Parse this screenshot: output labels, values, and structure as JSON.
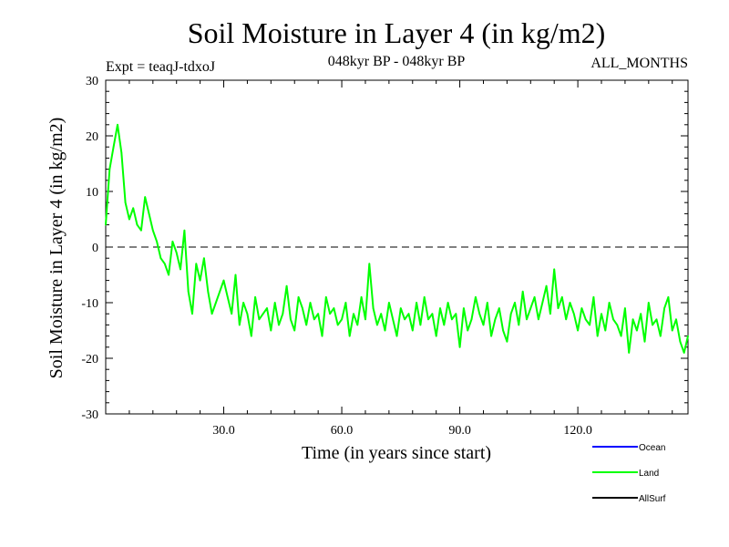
{
  "chart_data": {
    "type": "line",
    "title": "Soil Moisture in Layer 4 (in kg/m2)",
    "subtitle_left": "Expt = teaqJ-tdxoJ",
    "subtitle_center": "048kyr BP - 048kyr BP",
    "subtitle_right": "ALL_MONTHS",
    "xlabel": "Time (in years since start)",
    "ylabel": "Soil Moisture in Layer 4 (in kg/m2)",
    "xlim": [
      0,
      148
    ],
    "ylim": [
      -30,
      30
    ],
    "x_ticks": [
      30,
      60,
      90,
      120
    ],
    "x_tick_labels": [
      "30.0",
      "60.0",
      "90.0",
      "120.0"
    ],
    "y_ticks": [
      -30,
      -20,
      -10,
      0,
      10,
      20,
      30
    ],
    "y_tick_labels": [
      "-30",
      "-20",
      "-10",
      "0",
      "10",
      "20",
      "30"
    ],
    "reference_line": {
      "y": 0,
      "style": "dashed"
    },
    "legend_position": "bottom-right",
    "legend": [
      {
        "name": "Ocean",
        "color": "#0000ff"
      },
      {
        "name": "Land",
        "color": "#00ff00"
      },
      {
        "name": "AllSurf",
        "color": "#000000"
      }
    ],
    "series": [
      {
        "name": "Land",
        "color": "#00ff00",
        "x": [
          0,
          1,
          2,
          3,
          4,
          5,
          6,
          7,
          8,
          9,
          10,
          11,
          12,
          13,
          14,
          15,
          16,
          17,
          18,
          19,
          20,
          21,
          22,
          23,
          24,
          25,
          26,
          27,
          28,
          29,
          30,
          31,
          32,
          33,
          34,
          35,
          36,
          37,
          38,
          39,
          40,
          41,
          42,
          43,
          44,
          45,
          46,
          47,
          48,
          49,
          50,
          51,
          52,
          53,
          54,
          55,
          56,
          57,
          58,
          59,
          60,
          61,
          62,
          63,
          64,
          65,
          66,
          67,
          68,
          69,
          70,
          71,
          72,
          73,
          74,
          75,
          76,
          77,
          78,
          79,
          80,
          81,
          82,
          83,
          84,
          85,
          86,
          87,
          88,
          89,
          90,
          91,
          92,
          93,
          94,
          95,
          96,
          97,
          98,
          99,
          100,
          101,
          102,
          103,
          104,
          105,
          106,
          107,
          108,
          109,
          110,
          111,
          112,
          113,
          114,
          115,
          116,
          117,
          118,
          119,
          120,
          121,
          122,
          123,
          124,
          125,
          126,
          127,
          128,
          129,
          130,
          131,
          132,
          133,
          134,
          135,
          136,
          137,
          138,
          139,
          140,
          141,
          142,
          143,
          144,
          145,
          146,
          147,
          148
        ],
        "values": [
          4,
          14,
          18,
          22,
          17,
          8,
          5,
          7,
          4,
          3,
          9,
          6,
          3,
          1,
          -2,
          -3,
          -5,
          1,
          -1,
          -4,
          3,
          -8,
          -12,
          -3,
          -6,
          -2,
          -8,
          -12,
          -10,
          -8,
          -6,
          -9,
          -12,
          -5,
          -14,
          -10,
          -12,
          -16,
          -9,
          -13,
          -12,
          -11,
          -15,
          -10,
          -14,
          -12,
          -7,
          -13,
          -15,
          -9,
          -11,
          -14,
          -10,
          -13,
          -12,
          -16,
          -9,
          -12,
          -11,
          -14,
          -13,
          -10,
          -16,
          -12,
          -14,
          -9,
          -13,
          -3,
          -11,
          -14,
          -12,
          -15,
          -10,
          -13,
          -16,
          -11,
          -13,
          -12,
          -15,
          -10,
          -14,
          -9,
          -13,
          -12,
          -16,
          -11,
          -14,
          -10,
          -13,
          -12,
          -18,
          -11,
          -15,
          -13,
          -9,
          -12,
          -14,
          -10,
          -16,
          -13,
          -11,
          -15,
          -17,
          -12,
          -10,
          -14,
          -8,
          -13,
          -11,
          -9,
          -13,
          -10,
          -7,
          -12,
          -4,
          -11,
          -9,
          -13,
          -10,
          -12,
          -15,
          -11,
          -13,
          -14,
          -9,
          -16,
          -12,
          -15,
          -10,
          -13,
          -14,
          -16,
          -11,
          -19,
          -13,
          -15,
          -12,
          -17,
          -10,
          -14,
          -13,
          -16,
          -11,
          -9,
          -15,
          -13,
          -17,
          -19,
          -16
        ]
      }
    ]
  }
}
